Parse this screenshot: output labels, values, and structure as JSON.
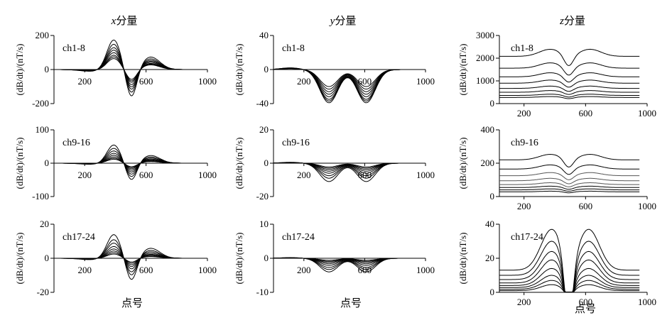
{
  "figure": {
    "column_titles": [
      {
        "var": "x",
        "text": "分量"
      },
      {
        "var": "y",
        "text": "分量"
      },
      {
        "var": "z",
        "text": "分量"
      }
    ],
    "ylabel": "(dB/dt)/(nT/s)",
    "xlabel": "点号"
  },
  "chart_data": [
    {
      "id": "x1",
      "type": "line",
      "channel": "ch1-8",
      "col": 0,
      "row": 0,
      "component": "x",
      "lines": 8,
      "baseline": "zero",
      "xlim": [
        0,
        1000
      ],
      "ylim": [
        -200,
        200
      ],
      "xticks": [
        200,
        600,
        1000
      ],
      "xtick_labels": [
        "200",
        "600",
        "1000"
      ],
      "yticks": [
        -200,
        0,
        200
      ],
      "ytick_labels": [
        "-200",
        "0",
        "200"
      ],
      "series_amplitudes": [
        175,
        150,
        130,
        115,
        100,
        85,
        75,
        65
      ],
      "x_grid": [
        0,
        100,
        200,
        250,
        300,
        330,
        360,
        390,
        420,
        450,
        480,
        510,
        540,
        570,
        600,
        650,
        700,
        800,
        900,
        1000
      ]
    },
    {
      "id": "y1",
      "type": "line",
      "channel": "ch1-8",
      "col": 1,
      "row": 0,
      "component": "y",
      "lines": 8,
      "baseline": "zero",
      "xlim": [
        0,
        1000
      ],
      "ylim": [
        -40,
        40
      ],
      "xticks": [
        200,
        600,
        1000
      ],
      "xtick_labels": [
        "200",
        "600",
        "1000"
      ],
      "yticks": [
        -40,
        0,
        40
      ],
      "ytick_labels": [
        "-40",
        "0",
        "40"
      ],
      "series_amplitudes": [
        39,
        37,
        35,
        32,
        29,
        26,
        23,
        20
      ],
      "x_grid": [
        0,
        100,
        200,
        250,
        300,
        330,
        360,
        390,
        420,
        450,
        480,
        510,
        540,
        570,
        600,
        650,
        700,
        800,
        900,
        1000
      ]
    },
    {
      "id": "z1",
      "type": "line",
      "channel": "ch1-8",
      "col": 2,
      "row": 0,
      "component": "z",
      "lines": 8,
      "baseline": "positive",
      "xlim": [
        40,
        1000
      ],
      "ylim": [
        0,
        3000
      ],
      "xticks": [
        200,
        600,
        1000
      ],
      "xtick_labels": [
        "200",
        "600",
        "1000"
      ],
      "yticks": [
        0,
        1000,
        2000,
        3000
      ],
      "ytick_labels": [
        "0",
        "1000",
        "2000",
        "3000"
      ],
      "series_base": [
        2080,
        1560,
        1180,
        900,
        670,
        500,
        360,
        270
      ],
      "x_grid": [
        40,
        100,
        200,
        250,
        300,
        350,
        380,
        420,
        460,
        480,
        500,
        540,
        580,
        620,
        650,
        700,
        800,
        900,
        950
      ]
    },
    {
      "id": "x2",
      "type": "line",
      "channel": "ch9-16",
      "col": 0,
      "row": 1,
      "component": "x",
      "lines": 8,
      "baseline": "zero",
      "xlim": [
        0,
        1000
      ],
      "ylim": [
        -100,
        100
      ],
      "xticks": [
        200,
        600,
        1000
      ],
      "xtick_labels": [
        "200",
        "600",
        "1000"
      ],
      "yticks": [
        -100,
        0,
        100
      ],
      "ytick_labels": [
        "-100",
        "0",
        "100"
      ],
      "series_amplitudes": [
        55,
        45,
        37,
        30,
        24,
        19,
        15,
        12
      ],
      "x_grid": [
        0,
        100,
        200,
        250,
        300,
        330,
        360,
        390,
        420,
        450,
        480,
        510,
        540,
        570,
        600,
        650,
        700,
        800,
        900,
        1000
      ]
    },
    {
      "id": "y2",
      "type": "line",
      "channel": "ch9-16",
      "col": 1,
      "row": 1,
      "component": "y",
      "lines": 8,
      "baseline": "zero",
      "xlim": [
        0,
        1000
      ],
      "ylim": [
        -20,
        20
      ],
      "xticks": [
        200,
        600,
        1000
      ],
      "xtick_labels": [
        "200",
        "600",
        "1000"
      ],
      "yticks": [
        -20,
        0,
        20
      ],
      "ytick_labels": [
        "-20",
        "0",
        "20"
      ],
      "series_amplitudes": [
        11,
        9,
        7.5,
        6,
        4.8,
        3.8,
        3,
        2.3
      ],
      "x_grid": [
        0,
        100,
        200,
        250,
        300,
        330,
        360,
        390,
        420,
        450,
        480,
        510,
        540,
        570,
        600,
        650,
        700,
        800,
        900,
        1000
      ]
    },
    {
      "id": "z2",
      "type": "line",
      "channel": "ch9-16",
      "col": 2,
      "row": 1,
      "component": "z",
      "lines": 8,
      "baseline": "positive",
      "xlim": [
        40,
        1000
      ],
      "ylim": [
        0,
        400
      ],
      "xticks": [
        200,
        600,
        1000
      ],
      "xtick_labels": [
        "200",
        "600",
        "1000"
      ],
      "yticks": [
        0,
        200,
        400
      ],
      "ytick_labels": [
        "0",
        "200",
        "400"
      ],
      "series_base": [
        220,
        165,
        125,
        95,
        72,
        54,
        40,
        28
      ],
      "x_grid": [
        40,
        100,
        200,
        250,
        300,
        350,
        380,
        420,
        460,
        480,
        500,
        540,
        580,
        620,
        650,
        700,
        800,
        900,
        950
      ]
    },
    {
      "id": "x3",
      "type": "line",
      "channel": "ch17-24",
      "col": 0,
      "row": 2,
      "component": "x",
      "lines": 8,
      "baseline": "zero",
      "xlim": [
        0,
        1000
      ],
      "ylim": [
        -20,
        20
      ],
      "xticks": [
        200,
        600,
        1000
      ],
      "xtick_labels": [
        "200",
        "600",
        "1000"
      ],
      "yticks": [
        -20,
        0,
        20
      ],
      "ytick_labels": [
        "-20",
        "0",
        "20"
      ],
      "series_amplitudes": [
        14,
        11,
        9,
        7,
        5.5,
        4.3,
        3.3,
        2.5
      ],
      "x_grid": [
        0,
        100,
        200,
        250,
        300,
        330,
        360,
        390,
        420,
        450,
        480,
        510,
        540,
        570,
        600,
        650,
        700,
        800,
        900,
        1000
      ]
    },
    {
      "id": "y3",
      "type": "line",
      "channel": "ch17-24",
      "col": 1,
      "row": 2,
      "component": "y",
      "lines": 8,
      "baseline": "zero",
      "xlim": [
        0,
        1000
      ],
      "ylim": [
        -10,
        10
      ],
      "xticks": [
        200,
        600,
        1000
      ],
      "xtick_labels": [
        "200",
        "600",
        "1000"
      ],
      "yticks": [
        -10,
        0,
        10
      ],
      "ytick_labels": [
        "-10",
        "0",
        "10"
      ],
      "series_amplitudes": [
        4,
        3.3,
        2.7,
        2.1,
        1.6,
        1.2,
        0.9,
        0.6
      ],
      "x_grid": [
        0,
        100,
        200,
        250,
        300,
        330,
        360,
        390,
        420,
        450,
        480,
        510,
        540,
        570,
        600,
        650,
        700,
        800,
        900,
        1000
      ]
    },
    {
      "id": "z3",
      "type": "line",
      "channel": "ch17-24",
      "col": 2,
      "row": 2,
      "component": "z",
      "lines": 8,
      "baseline": "positive",
      "xlim": [
        40,
        1000
      ],
      "ylim": [
        0,
        40
      ],
      "xticks": [
        200,
        600,
        1000
      ],
      "xtick_labels": [
        "200",
        "600",
        "1000"
      ],
      "yticks": [
        0,
        20,
        40
      ],
      "ytick_labels": [
        "0",
        "20",
        "40"
      ],
      "series_base": [
        13,
        10,
        7.5,
        5.5,
        4,
        2.8,
        1.8,
        1.0
      ],
      "series_peak": [
        37,
        30,
        24,
        19,
        14,
        10,
        7,
        4.5
      ],
      "x_grid": [
        40,
        100,
        200,
        250,
        300,
        350,
        380,
        420,
        460,
        480,
        500,
        540,
        580,
        620,
        650,
        700,
        800,
        900,
        950
      ]
    }
  ]
}
